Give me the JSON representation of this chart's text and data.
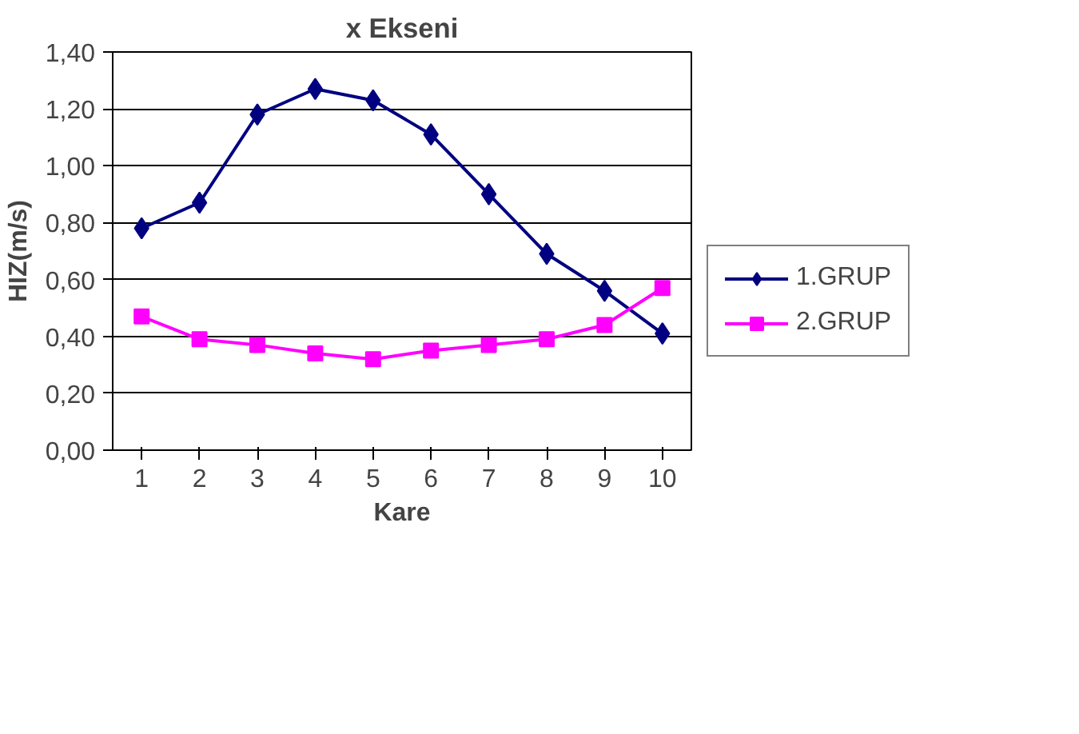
{
  "chart_data": {
    "type": "line",
    "title": "x Ekseni",
    "xlabel": "Kare",
    "ylabel": "HIZ(m/s)",
    "categories": [
      "1",
      "2",
      "3",
      "4",
      "5",
      "6",
      "7",
      "8",
      "9",
      "10"
    ],
    "series": [
      {
        "name": "1.GRUP",
        "color": "#000080",
        "marker": "diamond",
        "values": [
          0.78,
          0.87,
          1.18,
          1.27,
          1.23,
          1.11,
          0.9,
          0.69,
          0.56,
          0.41
        ]
      },
      {
        "name": "2.GRUP",
        "color": "#ff00ff",
        "marker": "square",
        "values": [
          0.47,
          0.39,
          0.37,
          0.34,
          0.32,
          0.35,
          0.37,
          0.39,
          0.44,
          0.57
        ]
      }
    ],
    "ylim": [
      0,
      1.4
    ],
    "yticks": [
      {
        "value": 0,
        "label": "0,00"
      },
      {
        "value": 0.2,
        "label": "0,20"
      },
      {
        "value": 0.4,
        "label": "0,40"
      },
      {
        "value": 0.6,
        "label": "0,60"
      },
      {
        "value": 0.8,
        "label": "0,80"
      },
      {
        "value": 1.0,
        "label": "1,00"
      },
      {
        "value": 1.2,
        "label": "1,20"
      },
      {
        "value": 1.4,
        "label": "1,40"
      }
    ],
    "grid": "y",
    "legend": "right"
  }
}
